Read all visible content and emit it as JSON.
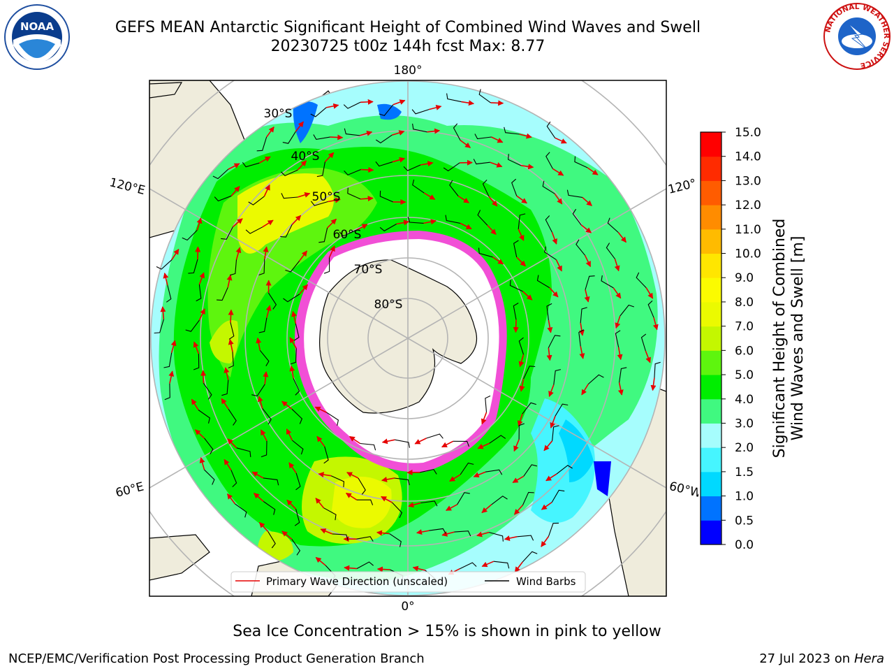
{
  "title": {
    "line1": "GEFS MEAN Antarctic Significant Height of Combined Wind Waves and Swell",
    "line2": "20230725 t00z 144h fcst   Max: 8.77"
  },
  "logos": {
    "left": "NOAA",
    "right": "NATIONAL WEATHER SERVICE"
  },
  "map": {
    "projection": "south-polar-stereographic",
    "longitude_labels": [
      "180°",
      "120°E",
      "120°",
      "60°E",
      "60°W",
      "0°"
    ],
    "latitude_labels": [
      "30°S",
      "40°S",
      "50°S",
      "60°S",
      "70°S",
      "80°S"
    ],
    "colors": {
      "land": "#efecdc",
      "ice": "#ffffff",
      "ice_edge": "#f14fd6",
      "gridline": "#b4b4b4",
      "wave_arrow": "#e60000",
      "wind_barb": "#000000"
    }
  },
  "legend": {
    "wave_direction": "Primary Wave Direction (unscaled)",
    "wind_barbs": "Wind Barbs"
  },
  "colorbar": {
    "label_line1": "Significant Height of Combined",
    "label_line2": "Wind Waves and Swell [m]",
    "ticks": [
      "0.0",
      "0.5",
      "1.0",
      "1.5",
      "2.0",
      "3.0",
      "4.0",
      "5.0",
      "6.0",
      "7.0",
      "8.0",
      "9.0",
      "10.0",
      "11.0",
      "12.0",
      "13.0",
      "14.0",
      "15.0"
    ],
    "colors": [
      "#0000ff",
      "#0073ff",
      "#00d9ff",
      "#46f5ff",
      "#a6fdfd",
      "#40f980",
      "#00ee00",
      "#5ef50e",
      "#c4f700",
      "#ebfa00",
      "#fbfb00",
      "#ffe600",
      "#ffbb00",
      "#ff8c00",
      "#ff5c00",
      "#ff2b00",
      "#ff0000"
    ]
  },
  "notes": {
    "sea_ice": "Sea Ice Concentration > 15% is shown in pink to yellow"
  },
  "footer": {
    "credit": "NCEP/EMC/Verification Post Processing Product Generation Branch",
    "date": "27 Jul 2023 on ",
    "host": "Hera"
  }
}
